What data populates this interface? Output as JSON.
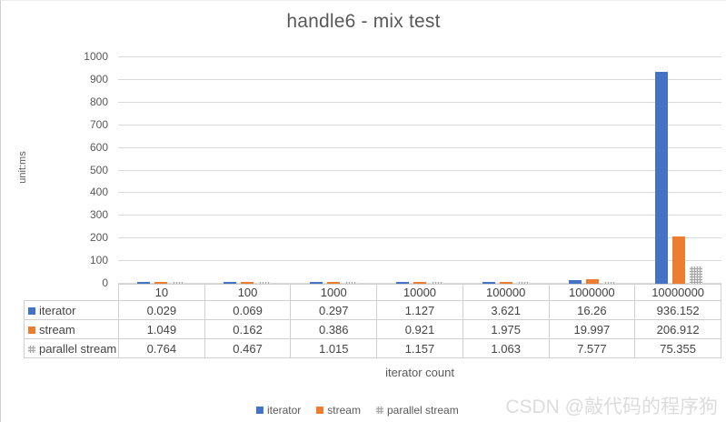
{
  "title": "handle6 - mix test",
  "watermark": "CSDN @敲代码的程序狗",
  "chart_data": {
    "type": "bar",
    "title": "handle6 - mix test",
    "xlabel": "iterator count",
    "ylabel": "unit:ms",
    "ylim": [
      0,
      1000
    ],
    "ytick_step": 100,
    "grid": true,
    "legend_position": "bottom",
    "categories": [
      "10",
      "100",
      "1000",
      "10000",
      "100000",
      "1000000",
      "10000000"
    ],
    "series": [
      {
        "name": "iterator",
        "color": "#4472c4",
        "pattern": "solid",
        "values": [
          0.029,
          0.069,
          0.297,
          1.127,
          3.621,
          16.26,
          936.152
        ]
      },
      {
        "name": "stream",
        "color": "#ed7d31",
        "pattern": "solid",
        "values": [
          1.049,
          0.162,
          0.386,
          0.921,
          1.975,
          19.997,
          206.912
        ]
      },
      {
        "name": "parallel stream",
        "color": "#a6a6a6",
        "pattern": "dotted",
        "values": [
          0.764,
          0.467,
          1.015,
          1.157,
          1.063,
          7.577,
          75.355
        ]
      }
    ]
  }
}
